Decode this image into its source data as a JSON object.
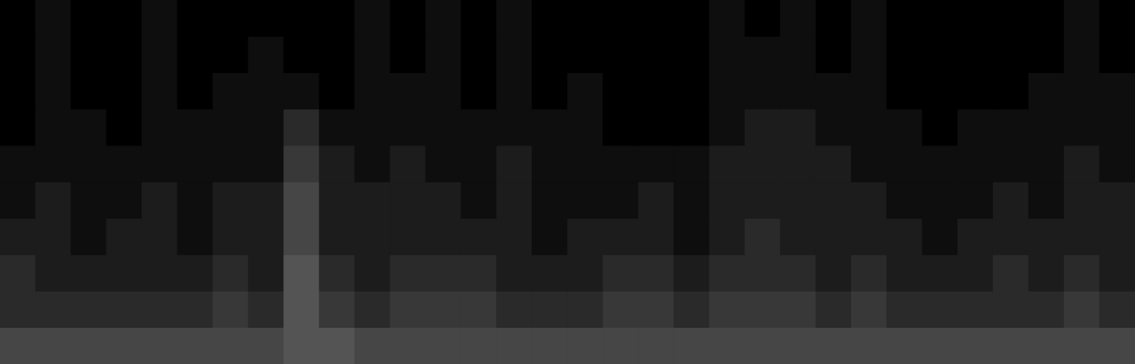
{
  "chart_data": {
    "type": "heatmap",
    "grid": false,
    "tick_labels": false,
    "cells": [
      [
        0,
        1,
        0,
        0,
        1,
        0,
        0,
        0,
        0,
        0,
        1,
        0,
        1,
        0,
        1,
        0,
        0,
        0,
        0,
        0,
        1,
        0,
        1,
        0,
        1,
        0,
        0,
        0,
        0,
        0,
        1,
        0
      ],
      [
        0,
        1,
        0,
        0,
        1,
        0,
        0,
        1,
        0,
        0,
        1,
        0,
        1,
        0,
        1,
        0,
        0,
        0,
        0,
        0,
        1,
        1,
        1,
        0,
        1,
        0,
        0,
        0,
        0,
        0,
        1,
        0
      ],
      [
        0,
        1,
        0,
        0,
        1,
        0,
        1,
        1,
        1,
        0,
        1,
        1,
        1,
        0,
        1,
        0,
        1,
        0,
        0,
        0,
        1,
        1,
        1,
        1,
        1,
        0,
        0,
        0,
        0,
        1,
        1,
        1
      ],
      [
        0,
        1,
        1,
        0,
        1,
        1,
        1,
        1,
        3,
        1,
        1,
        1,
        1,
        1,
        1,
        1,
        1,
        0,
        0,
        0,
        1,
        2,
        2,
        1,
        1,
        1,
        0,
        1,
        1,
        1,
        1,
        1
      ],
      [
        1,
        1,
        1,
        1,
        1,
        1,
        1,
        1,
        4,
        2,
        1,
        2,
        1,
        1,
        2,
        1,
        1,
        1,
        1,
        1,
        2,
        2,
        2,
        2,
        1,
        1,
        1,
        1,
        1,
        1,
        2,
        1
      ],
      [
        1,
        2,
        1,
        1,
        2,
        1,
        2,
        2,
        5,
        2,
        2,
        2,
        2,
        1,
        2,
        1,
        1,
        1,
        2,
        1,
        2,
        2,
        2,
        2,
        2,
        1,
        1,
        1,
        2,
        1,
        2,
        2
      ],
      [
        2,
        2,
        1,
        2,
        2,
        1,
        2,
        2,
        5,
        2,
        2,
        2,
        2,
        2,
        2,
        1,
        2,
        2,
        2,
        1,
        2,
        3,
        2,
        2,
        2,
        2,
        1,
        2,
        2,
        2,
        2,
        2
      ],
      [
        3,
        2,
        2,
        2,
        2,
        2,
        3,
        2,
        6,
        3,
        2,
        3,
        3,
        3,
        2,
        2,
        2,
        3,
        3,
        2,
        3,
        3,
        3,
        2,
        3,
        2,
        2,
        2,
        3,
        2,
        3,
        2
      ],
      [
        3,
        3,
        3,
        3,
        3,
        3,
        4,
        3,
        6,
        4,
        3,
        4,
        4,
        4,
        3,
        3,
        3,
        4,
        4,
        3,
        4,
        4,
        4,
        3,
        4,
        3,
        3,
        3,
        3,
        3,
        4,
        3
      ],
      [
        5,
        5,
        5,
        5,
        5,
        5,
        5,
        5,
        6,
        6,
        5,
        5,
        5,
        5,
        5,
        5,
        5,
        5,
        5,
        5,
        5,
        5,
        5,
        5,
        5,
        5,
        5,
        5,
        5,
        5,
        5,
        5
      ]
    ]
  }
}
